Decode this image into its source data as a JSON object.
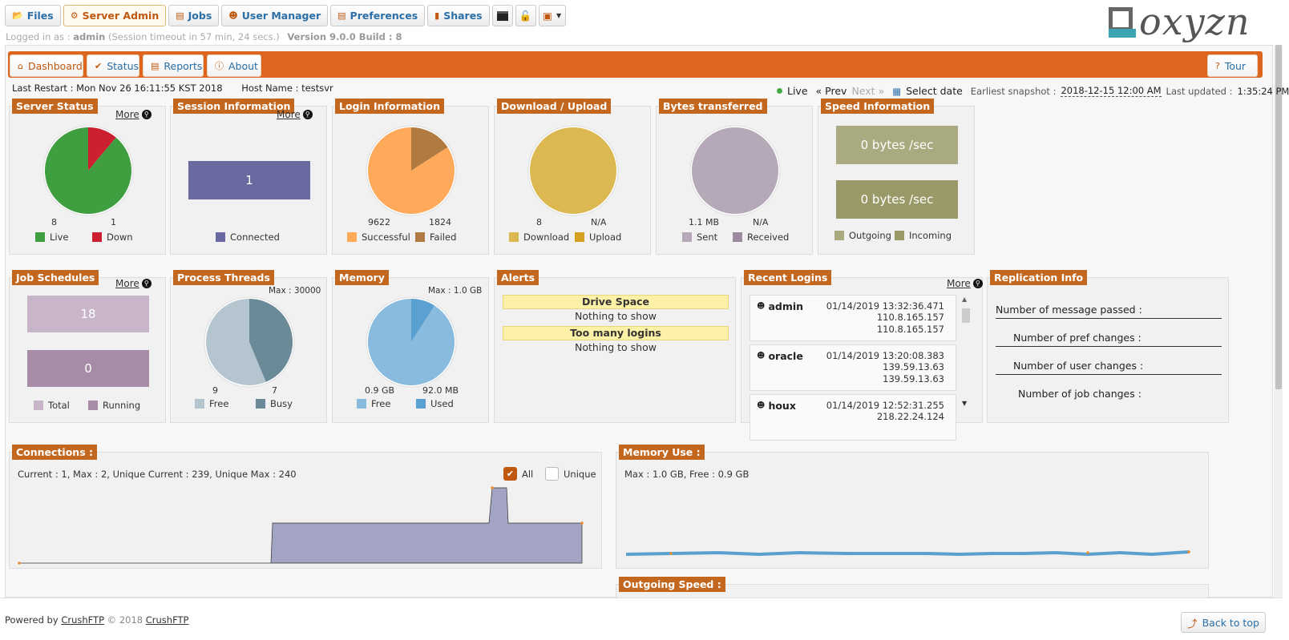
{
  "topnav": {
    "files": "Files",
    "server_admin": "Server Admin",
    "jobs": "Jobs",
    "user_manager": "User Manager",
    "preferences": "Preferences",
    "shares": "Shares"
  },
  "session": {
    "logged_in_as_label": "Logged in as :",
    "user": "admin",
    "timeout": "(Session timeout in 57 min, 24 secs.)",
    "version": "Version 9.0.0 Build : 8"
  },
  "logo": {
    "text": "oxyzn"
  },
  "subnav": {
    "dashboard": "Dashboard",
    "status": "Status",
    "reports": "Reports",
    "about": "About",
    "tour": "Tour"
  },
  "info": {
    "last_restart_label": "Last Restart :",
    "last_restart": "Mon Nov 26 16:11:55 KST 2018",
    "host_label": "Host Name :",
    "host": "testsvr",
    "live": "Live",
    "prev": "« Prev",
    "next": "Next »",
    "select_date": "Select date",
    "earliest_label": "Earliest snapshot :",
    "earliest": "2018-12-15 12:00 AM",
    "updated_label": "Last updated :",
    "updated": "1:35:24 PM"
  },
  "more_label": "More",
  "server_status": {
    "title": "Server Status",
    "live": "8",
    "down": "1",
    "live_label": "Live",
    "down_label": "Down"
  },
  "session_info": {
    "title": "Session Information",
    "connected": "1",
    "connected_label": "Connected"
  },
  "login_info": {
    "title": "Login Information",
    "successful": "9622",
    "failed": "1824",
    "successful_label": "Successful",
    "failed_label": "Failed"
  },
  "download_upload": {
    "title": "Download / Upload",
    "download": "8",
    "upload": "N/A",
    "download_label": "Download",
    "upload_label": "Upload"
  },
  "bytes": {
    "title": "Bytes transferred",
    "sent": "1.1 MB",
    "received": "N/A",
    "sent_label": "Sent",
    "received_label": "Received"
  },
  "speed": {
    "title": "Speed Information",
    "outgoing": "0 bytes /sec",
    "incoming": "0 bytes /sec",
    "outgoing_label": "Outgoing",
    "incoming_label": "Incoming"
  },
  "jobs": {
    "title": "Job Schedules",
    "total": "18",
    "running": "0",
    "total_label": "Total",
    "running_label": "Running"
  },
  "threads": {
    "title": "Process Threads",
    "max": "Max : 30000",
    "free": "9",
    "busy": "7",
    "free_label": "Free",
    "busy_label": "Busy"
  },
  "memory": {
    "title": "Memory",
    "max": "Max : 1.0 GB",
    "free": "0.9 GB",
    "used": "92.0 MB",
    "free_label": "Free",
    "used_label": "Used"
  },
  "alerts": {
    "title": "Alerts",
    "drive_space": "Drive Space",
    "too_many_logins": "Too many logins",
    "nothing": "Nothing to show"
  },
  "recent_logins": {
    "title": "Recent Logins",
    "items": [
      {
        "user": "admin",
        "time": "01/14/2019 13:32:36.471",
        "ip1": "110.8.165.157",
        "ip2": "110.8.165.157"
      },
      {
        "user": "oracle",
        "time": "01/14/2019 13:20:08.383",
        "ip1": "139.59.13.63",
        "ip2": "139.59.13.63"
      },
      {
        "user": "houx",
        "time": "01/14/2019 12:52:31.255",
        "ip1": "218.22.24.124"
      }
    ]
  },
  "replication": {
    "title": "Replication Info",
    "messages": "Number of message passed :",
    "pref": "Number of pref changes :",
    "user": "Number of user changes :",
    "job": "Number of job changes :"
  },
  "connections": {
    "title": "Connections :",
    "summary": "Current : 1, Max : 2, Unique Current : 239, Unique Max : 240",
    "all": "All",
    "unique": "Unique"
  },
  "memory_use": {
    "title": "Memory Use :",
    "summary": "Max : 1.0 GB, Free : 0.9 GB"
  },
  "outgoing_speed": {
    "title": "Outgoing Speed :"
  },
  "footer": {
    "powered": "Powered by",
    "crushftp": "CrushFTP",
    "copyright": "© 2018",
    "crushftp2": "CrushFTP",
    "back_to_top": "Back to top"
  },
  "colors": {
    "accent": "#dc6520",
    "live": "#3f9e3f",
    "down": "#cc1f2f",
    "successful": "#ffaa5a",
    "failed": "#b07a40",
    "download": "#dcb850",
    "upload": "#d4a020",
    "sent": "#b5a8b8",
    "received": "#9a8aa0",
    "outgoing": "#aaaa80",
    "incoming": "#9a9a68",
    "connected": "#6a6aa0",
    "total": "#c9b5c9",
    "running": "#a68ca6",
    "thread_free": "#b5c5cf",
    "thread_busy": "#6a8a98",
    "mem_free": "#88bbdd",
    "mem_used": "#5aa0d0"
  }
}
